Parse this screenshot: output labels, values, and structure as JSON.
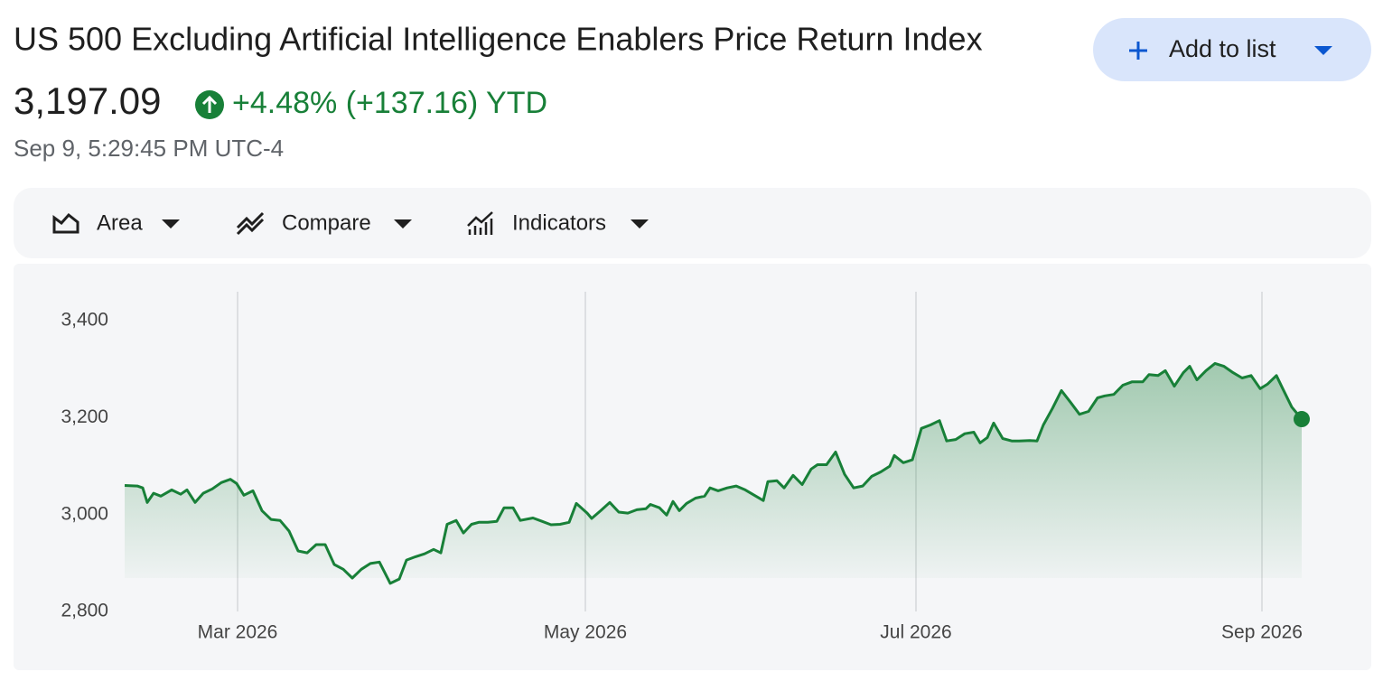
{
  "header": {
    "title": "US 500 Excluding Artificial Intelligence Enablers Price Return Index",
    "price": "3,197.09",
    "change": "+4.48% (+137.16) YTD",
    "timestamp": "Sep 9, 5:29:45 PM UTC-4"
  },
  "button": {
    "label": "Add to list"
  },
  "toolbar": {
    "items": [
      "Area",
      "Compare",
      "Indicators"
    ]
  },
  "chart_data": {
    "type": "area",
    "color": "#188038",
    "x": [
      0,
      1.4,
      2,
      2.5,
      3.2,
      4,
      5.2,
      6.2,
      6.9,
      7.8,
      8.7,
      9.7,
      10.7,
      11.7,
      12.4,
      13.2,
      14.2,
      15.2,
      16.2,
      17.2,
      18.2,
      19.2,
      20.2,
      21.2,
      22.2,
      23.2,
      24.2,
      25.2,
      26.2,
      27.2,
      28.2,
      29.4,
      30.4,
      31.2,
      32.2,
      33.2,
      34.2,
      35,
      35.7,
      36.7,
      37.5,
      38.4,
      39.2,
      40.2,
      41.2,
      42,
      43,
      43.8,
      45.2,
      46.2,
      47.2,
      48.2,
      49.2,
      50,
      51.2,
      51.7,
      52.7,
      53.7,
      54.7,
      55.7,
      56.7,
      57.7,
      58.2,
      59.2,
      60,
      60.7,
      61.4,
      62.2,
      63.2,
      64.2,
      64.8,
      65.7,
      66.7,
      67.7,
      68.7,
      69.7,
      70.7,
      71.2,
      72.2,
      73,
      74,
      75,
      76,
      76.7,
      77.7,
      78.7,
      79.7,
      80.7,
      81.7,
      82.7,
      83.7,
      84.7,
      85.2,
      86.2,
      87.2,
      88.2,
      89.2,
      90.2,
      91,
      92,
      93,
      94,
      94.7,
      95.5,
      96.2,
      97.2,
      98.2,
      99,
      100.2,
      101,
      101.7,
      102.7,
      103.7,
      104.7,
      105.7,
      106.7,
      107.7,
      108.5,
      109.5,
      110.5,
      111.5,
      112.7,
      113.4,
      114.4,
      115.2,
      116.2,
      117.2,
      117.9,
      118.7,
      119.7,
      120.7,
      121.7,
      122.7,
      123.7,
      124.7,
      125.7,
      126.5,
      127.5,
      128.2,
      129.2,
      130.3
    ],
    "values": [
      3060,
      3059,
      3055,
      3025,
      3044,
      3038,
      3051,
      3042,
      3051,
      3025,
      3044,
      3053,
      3066,
      3073,
      3064,
      3040,
      3049,
      3008,
      2990,
      2988,
      2966,
      2925,
      2921,
      2938,
      2938,
      2897,
      2887,
      2869,
      2887,
      2899,
      2902,
      2858,
      2867,
      2906,
      2913,
      2919,
      2928,
      2921,
      2980,
      2988,
      2962,
      2980,
      2984,
      2984,
      2986,
      3014,
      3014,
      2988,
      2993,
      2986,
      2979,
      2980,
      2984,
      3023,
      3003,
      2992,
      3008,
      3025,
      3005,
      3003,
      3010,
      3012,
      3021,
      3014,
      2999,
      3027,
      3008,
      3023,
      3034,
      3038,
      3055,
      3049,
      3055,
      3059,
      3051,
      3040,
      3029,
      3068,
      3070,
      3055,
      3081,
      3062,
      3094,
      3103,
      3103,
      3129,
      3083,
      3055,
      3059,
      3079,
      3088,
      3100,
      3122,
      3107,
      3113,
      3178,
      3185,
      3194,
      3152,
      3155,
      3167,
      3170,
      3148,
      3159,
      3189,
      3157,
      3152,
      3152,
      3153,
      3152,
      3185,
      3219,
      3256,
      3232,
      3207,
      3213,
      3241,
      3245,
      3248,
      3267,
      3274,
      3274,
      3289,
      3287,
      3297,
      3265,
      3293,
      3306,
      3278,
      3297,
      3312,
      3306,
      3293,
      3282,
      3287,
      3260,
      3269,
      3287,
      3260,
      3222,
      3197.09
    ],
    "xlim": [
      0,
      130.3
    ],
    "xticks": [
      {
        "value": 12.5,
        "label": "Mar 2026"
      },
      {
        "value": 51,
        "label": "May 2026"
      },
      {
        "value": 87.6,
        "label": "Jul 2026"
      },
      {
        "value": 125.9,
        "label": "Sep 2026"
      }
    ],
    "ylim": [
      2800,
      3460
    ],
    "yticks": [
      {
        "value": 2800,
        "label": "2,800"
      },
      {
        "value": 3000,
        "label": "3,000"
      },
      {
        "value": 3200,
        "label": "3,200"
      },
      {
        "value": 3400,
        "label": "3,400"
      }
    ],
    "grid": true
  }
}
